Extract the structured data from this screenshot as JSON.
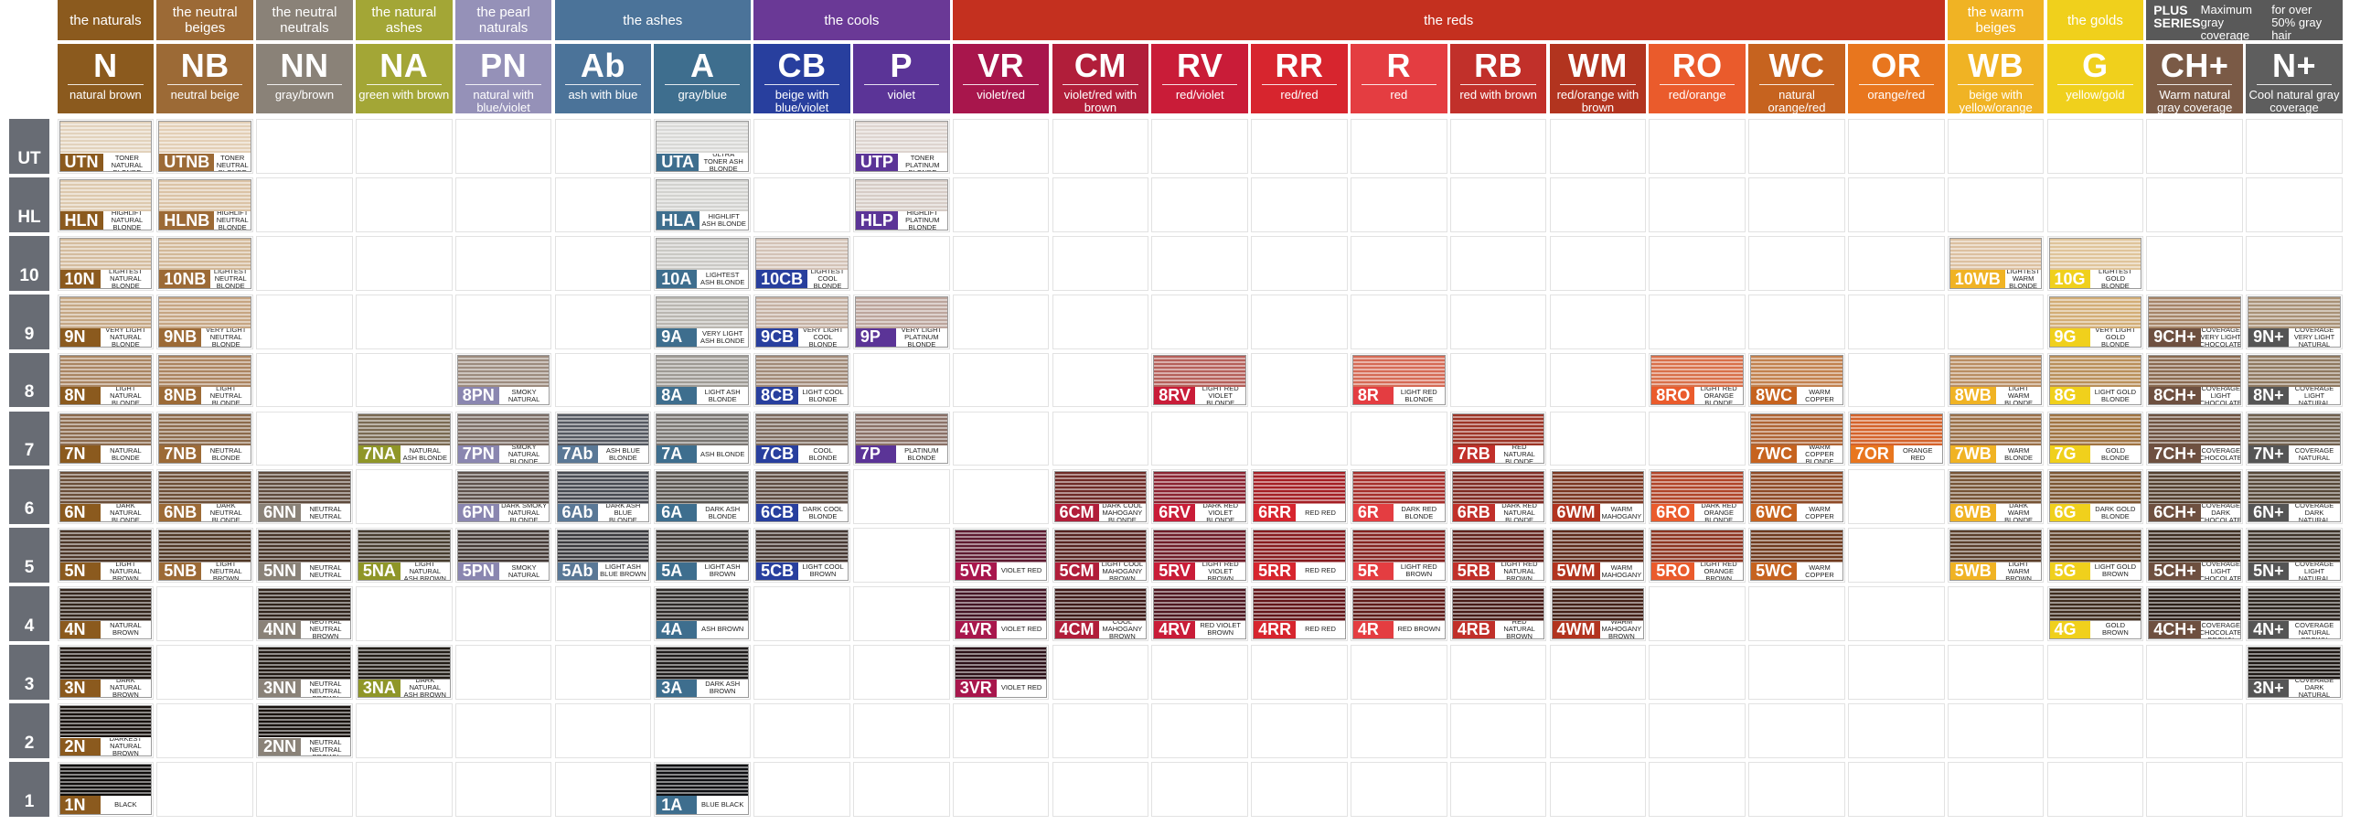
{
  "levels": [
    "UT",
    "HL",
    "10",
    "9",
    "8",
    "7",
    "6",
    "5",
    "4",
    "3",
    "2",
    "1"
  ],
  "groups": [
    {
      "text": "the naturals",
      "color": "#8b5a1e",
      "span": 1
    },
    {
      "text": "the neutral beiges",
      "color": "#9c6a36",
      "span": 1
    },
    {
      "text": "the neutral neutrals",
      "color": "#8a8278",
      "span": 1
    },
    {
      "text": "the natural ashes",
      "color": "#a3a636",
      "span": 1
    },
    {
      "text": "the pearl naturals",
      "color": "#9591b8",
      "span": 1
    },
    {
      "text": "the ashes",
      "color": "#4b7399",
      "span": 2
    },
    {
      "text": "the cools",
      "color": "#6a3996",
      "span": 2
    },
    {
      "text": "the reds",
      "color": "#c4301f",
      "span": 10
    },
    {
      "text": "the warm beiges",
      "color": "#f0b324",
      "span": 1
    },
    {
      "text": "the golds",
      "color": "#f0d01c",
      "span": 1
    },
    {
      "text": "",
      "color": "#595959",
      "span": 2,
      "plus": true
    }
  ],
  "plus_series": {
    "title": "PLUS SERIES",
    "line1": "Maximum gray coverage",
    "line2": "for over 50% gray hair"
  },
  "columns": [
    {
      "code": "N",
      "sub": "natural brown",
      "color": "#8b5a1e",
      "swatch": "#8b5a1e"
    },
    {
      "code": "NB",
      "sub": "neutral beige",
      "color": "#9c6a36",
      "swatch": "#9c6a36"
    },
    {
      "code": "NN",
      "sub": "gray/brown",
      "color": "#8a8278",
      "swatch": "#8a8278"
    },
    {
      "code": "NA",
      "sub": "green with brown",
      "color": "#a3a636",
      "swatch": "#8f9628"
    },
    {
      "code": "PN",
      "sub": "natural with blue/violet",
      "color": "#9591b8",
      "swatch": "#8a86b0"
    },
    {
      "code": "Ab",
      "sub": "ash with blue",
      "color": "#4b7399",
      "swatch": "#5a7896"
    },
    {
      "code": "A",
      "sub": "gray/blue",
      "color": "#3e6e8e",
      "swatch": "#3e6e8e"
    },
    {
      "code": "CB",
      "sub": "beige with blue/violet",
      "color": "#283f9e",
      "swatch": "#283f9e"
    },
    {
      "code": "P",
      "sub": "violet",
      "color": "#5b3497",
      "swatch": "#5b3497"
    },
    {
      "code": "VR",
      "sub": "violet/red",
      "color": "#a8164c",
      "swatch": "#a8164c"
    },
    {
      "code": "CM",
      "sub": "violet/red with brown",
      "color": "#b11e3a",
      "swatch": "#b11e3a"
    },
    {
      "code": "RV",
      "sub": "red/violet",
      "color": "#c91c38",
      "swatch": "#c91c38"
    },
    {
      "code": "RR",
      "sub": "red/red",
      "color": "#d7252e",
      "swatch": "#d7252e"
    },
    {
      "code": "R",
      "sub": "red",
      "color": "#e43d41",
      "swatch": "#e43d41"
    },
    {
      "code": "RB",
      "sub": "red with brown",
      "color": "#c1302a",
      "swatch": "#c1302a"
    },
    {
      "code": "WM",
      "sub": "red/orange with brown",
      "color": "#b2341f",
      "swatch": "#b2341f"
    },
    {
      "code": "RO",
      "sub": "red/orange",
      "color": "#ea5b2c",
      "swatch": "#ea5b2c"
    },
    {
      "code": "WC",
      "sub": "natural orange/red",
      "color": "#c6631f",
      "swatch": "#c6631f"
    },
    {
      "code": "OR",
      "sub": "orange/red",
      "color": "#e8761e",
      "swatch": "#e8761e"
    },
    {
      "code": "WB",
      "sub": "beige with yellow/orange",
      "color": "#f0b324",
      "swatch": "#f0b324"
    },
    {
      "code": "G",
      "sub": "yellow/gold",
      "color": "#f0d01c",
      "swatch": "#f0d01c"
    },
    {
      "code": "CH+",
      "sub": "Warm natural gray coverage",
      "color": "#7a5a46",
      "swatch": "#6e5040"
    },
    {
      "code": "N+",
      "sub": "Cool natural gray coverage",
      "color": "#5e5e5e",
      "swatch": "#555555"
    }
  ],
  "swatches": [
    {
      "col": 0,
      "row": 0,
      "label": "UTN",
      "desc": "ULTRA TONER NATURAL BLONDE",
      "hair": "#e2d2bc"
    },
    {
      "col": 1,
      "row": 0,
      "label": "UTNB",
      "desc": "ULTRA TONER NEUTRAL BLONDE",
      "hair": "#e3cfb6"
    },
    {
      "col": 6,
      "row": 0,
      "label": "UTA",
      "desc": "ULTRA TONER ASH BLONDE",
      "hair": "#d8d8d6"
    },
    {
      "col": 8,
      "row": 0,
      "label": "UTP",
      "desc": "ULTRA TONER PLATINUM BLONDE",
      "hair": "#ddd4cf"
    },
    {
      "col": 0,
      "row": 1,
      "label": "HLN",
      "desc": "HIGHLIFT NATURAL BLONDE",
      "hair": "#ddc9ae"
    },
    {
      "col": 1,
      "row": 1,
      "label": "HLNB",
      "desc": "HIGHLIFT NEUTRAL BLONDE",
      "hair": "#dbc3a6"
    },
    {
      "col": 6,
      "row": 1,
      "label": "HLA",
      "desc": "HIGHLIFT ASH BLONDE",
      "hair": "#d2d2cf"
    },
    {
      "col": 8,
      "row": 1,
      "label": "HLP",
      "desc": "HIGHLIFT PLATINUM BLONDE",
      "hair": "#d6ccc6"
    },
    {
      "col": 0,
      "row": 2,
      "label": "10N",
      "desc": "LIGHTEST NATURAL BLONDE",
      "hair": "#d4bc9e"
    },
    {
      "col": 1,
      "row": 2,
      "label": "10NB",
      "desc": "LIGHTEST NEUTRAL BLONDE",
      "hair": "#d2b898"
    },
    {
      "col": 6,
      "row": 2,
      "label": "10A",
      "desc": "LIGHTEST ASH BLONDE",
      "hair": "#c9c8c4"
    },
    {
      "col": 7,
      "row": 2,
      "label": "10CB",
      "desc": "LIGHTEST COOL BLONDE",
      "hair": "#d3c2b6"
    },
    {
      "col": 19,
      "row": 2,
      "label": "10WB",
      "desc": "LIGHTEST WARM BLONDE",
      "hair": "#dcc0a0"
    },
    {
      "col": 20,
      "row": 2,
      "label": "10G",
      "desc": "LIGHTEST GOLD BLONDE",
      "hair": "#dfc49a"
    },
    {
      "col": 0,
      "row": 3,
      "label": "9N",
      "desc": "VERY LIGHT NATURAL BLONDE",
      "hair": "#c5a784"
    },
    {
      "col": 1,
      "row": 3,
      "label": "9NB",
      "desc": "VERY LIGHT NEUTRAL BLONDE",
      "hair": "#c6a582"
    },
    {
      "col": 6,
      "row": 3,
      "label": "9A",
      "desc": "VERY LIGHT ASH BLONDE",
      "hair": "#b9b6b0"
    },
    {
      "col": 7,
      "row": 3,
      "label": "9CB",
      "desc": "VERY LIGHT COOL BLONDE",
      "hair": "#c4b0a2"
    },
    {
      "col": 8,
      "row": 3,
      "label": "9P",
      "desc": "VERY LIGHT PLATINUM BLONDE",
      "hair": "#bca59c"
    },
    {
      "col": 20,
      "row": 3,
      "label": "9G",
      "desc": "VERY LIGHT GOLD BLONDE",
      "hair": "#d2ad76"
    },
    {
      "col": 21,
      "row": 3,
      "label": "9CH+",
      "desc": "GRAY COVERAGE VERY LIGHT CHOCOLATE BLONDE",
      "hair": "#a58467"
    },
    {
      "col": 22,
      "row": 3,
      "label": "9N+",
      "desc": "GRAY COVERAGE VERY LIGHT NATURAL BLONDE",
      "hair": "#a89176"
    },
    {
      "col": 0,
      "row": 4,
      "label": "8N",
      "desc": "LIGHT NATURAL BLONDE",
      "hair": "#a98562"
    },
    {
      "col": 1,
      "row": 4,
      "label": "8NB",
      "desc": "LIGHT NEUTRAL BLONDE",
      "hair": "#ab8460"
    },
    {
      "col": 4,
      "row": 4,
      "label": "8PN",
      "desc": "LIGHT SMOKY NATURAL BLONDE",
      "hair": "#9c8b7e"
    },
    {
      "col": 6,
      "row": 4,
      "label": "8A",
      "desc": "LIGHT ASH BLONDE",
      "hair": "#9e9a94"
    },
    {
      "col": 7,
      "row": 4,
      "label": "8CB",
      "desc": "LIGHT COOL BLONDE",
      "hair": "#a18a78"
    },
    {
      "col": 11,
      "row": 4,
      "label": "8RV",
      "desc": "LIGHT RED VIOLET BLONDE",
      "hair": "#b5605a"
    },
    {
      "col": 13,
      "row": 4,
      "label": "8R",
      "desc": "LIGHT RED BLONDE",
      "hair": "#d56a55"
    },
    {
      "col": 16,
      "row": 4,
      "label": "8RO",
      "desc": "LIGHT RED ORANGE BLONDE",
      "hair": "#d8704a"
    },
    {
      "col": 17,
      "row": 4,
      "label": "8WC",
      "desc": "LIGHT WARM COPPER BLONDE",
      "hair": "#c2814e"
    },
    {
      "col": 19,
      "row": 4,
      "label": "8WB",
      "desc": "LIGHT WARM BLONDE",
      "hair": "#b98d62"
    },
    {
      "col": 20,
      "row": 4,
      "label": "8G",
      "desc": "LIGHT GOLD BLONDE",
      "hair": "#b98f5a"
    },
    {
      "col": 21,
      "row": 4,
      "label": "8CH+",
      "desc": "GRAY COVERAGE LIGHT CHOCOLATE BLONDE",
      "hair": "#8a6a50"
    },
    {
      "col": 22,
      "row": 4,
      "label": "8N+",
      "desc": "GRAY COVERAGE LIGHT NATURAL BLONDE",
      "hair": "#8f7960"
    },
    {
      "col": 0,
      "row": 5,
      "label": "7N",
      "desc": "NATURAL BLONDE",
      "hair": "#8b6a4d"
    },
    {
      "col": 1,
      "row": 5,
      "label": "7NB",
      "desc": "NEUTRAL BLONDE",
      "hair": "#8c6a4b"
    },
    {
      "col": 3,
      "row": 5,
      "label": "7NA",
      "desc": "NATURAL ASH BLONDE",
      "hair": "#7a6a52"
    },
    {
      "col": 4,
      "row": 5,
      "label": "7PN",
      "desc": "SMOKY NATURAL BLONDE",
      "hair": "#7c6e66"
    },
    {
      "col": 5,
      "row": 5,
      "label": "7Ab",
      "desc": "ASH BLUE BLONDE",
      "hair": "#545860"
    },
    {
      "col": 6,
      "row": 5,
      "label": "7A",
      "desc": "ASH BLONDE",
      "hair": "#7a7672"
    },
    {
      "col": 7,
      "row": 5,
      "label": "7CB",
      "desc": "COOL BLONDE",
      "hair": "#7c6a5e"
    },
    {
      "col": 8,
      "row": 5,
      "label": "7P",
      "desc": "PLATINUM BLONDE",
      "hair": "#8a7066"
    },
    {
      "col": 14,
      "row": 5,
      "label": "7RB",
      "desc": "RED NATURAL BLONDE",
      "hair": "#9c3426"
    },
    {
      "col": 17,
      "row": 5,
      "label": "7WC",
      "desc": "WARM COPPER BLONDE",
      "hair": "#ae6434"
    },
    {
      "col": 18,
      "row": 5,
      "label": "7OR",
      "desc": "ORANGE RED",
      "hair": "#d4622a"
    },
    {
      "col": 19,
      "row": 5,
      "label": "7WB",
      "desc": "WARM BLONDE",
      "hair": "#9a7048"
    },
    {
      "col": 20,
      "row": 5,
      "label": "7G",
      "desc": "GOLD BLONDE",
      "hair": "#a07442"
    },
    {
      "col": 21,
      "row": 5,
      "label": "7CH+",
      "desc": "GRAY COVERAGE CHOCOLATE BLONDE",
      "hair": "#6e5240"
    },
    {
      "col": 22,
      "row": 5,
      "label": "7N+",
      "desc": "GRAY COVERAGE NATURAL BLONDE",
      "hair": "#70604e"
    },
    {
      "col": 0,
      "row": 6,
      "label": "6N",
      "desc": "DARK NATURAL BLONDE",
      "hair": "#6a4e38"
    },
    {
      "col": 1,
      "row": 6,
      "label": "6NB",
      "desc": "DARK NEUTRAL BLONDE",
      "hair": "#6c4e36"
    },
    {
      "col": 2,
      "row": 6,
      "label": "6NN",
      "desc": "DARK NEUTRAL NEUTRAL BLONDE",
      "hair": "#5e4a3c"
    },
    {
      "col": 4,
      "row": 6,
      "label": "6PN",
      "desc": "DARK SMOKY NATURAL BLONDE",
      "hair": "#5e524c"
    },
    {
      "col": 5,
      "row": 6,
      "label": "6Ab",
      "desc": "DARK ASH BLUE BLONDE",
      "hair": "#474a52"
    },
    {
      "col": 6,
      "row": 6,
      "label": "6A",
      "desc": "DARK ASH BLONDE",
      "hair": "#5a5550"
    },
    {
      "col": 7,
      "row": 6,
      "label": "6CB",
      "desc": "DARK COOL BLONDE",
      "hair": "#5e4c42"
    },
    {
      "col": 10,
      "row": 6,
      "label": "6CM",
      "desc": "DARK COOL MAHOGANY BLONDE",
      "hair": "#6e2a26"
    },
    {
      "col": 11,
      "row": 6,
      "label": "6RV",
      "desc": "DARK RED VIOLET BLONDE",
      "hair": "#8a2230"
    },
    {
      "col": 12,
      "row": 6,
      "label": "6RR",
      "desc": "RED RED",
      "hair": "#a41e24"
    },
    {
      "col": 13,
      "row": 6,
      "label": "6R",
      "desc": "DARK RED BLONDE",
      "hair": "#a52e2a"
    },
    {
      "col": 14,
      "row": 6,
      "label": "6RB",
      "desc": "DARK RED NATURAL BLONDE",
      "hair": "#7e2a22"
    },
    {
      "col": 15,
      "row": 6,
      "label": "6WM",
      "desc": "DARK WARM MAHOGANY BLONDE",
      "hair": "#7a3620"
    },
    {
      "col": 16,
      "row": 6,
      "label": "6RO",
      "desc": "DARK RED ORANGE BLONDE",
      "hair": "#b04428"
    },
    {
      "col": 17,
      "row": 6,
      "label": "6WC",
      "desc": "DARK WARM COPPER BLONDE",
      "hair": "#8e4a26"
    },
    {
      "col": 19,
      "row": 6,
      "label": "6WB",
      "desc": "DARK WARM BLONDE",
      "hair": "#765436"
    },
    {
      "col": 20,
      "row": 6,
      "label": "6G",
      "desc": "DARK GOLD BLONDE",
      "hair": "#7c5632"
    },
    {
      "col": 21,
      "row": 6,
      "label": "6CH+",
      "desc": "GRAY COVERAGE DARK CHOCOLATE BLONDE",
      "hair": "#54402f"
    },
    {
      "col": 22,
      "row": 6,
      "label": "6N+",
      "desc": "GRAY COVERAGE DARK NATURAL BLONDE",
      "hair": "#564838"
    },
    {
      "col": 0,
      "row": 7,
      "label": "5N",
      "desc": "LIGHT NATURAL BROWN",
      "hair": "#4c3628"
    },
    {
      "col": 1,
      "row": 7,
      "label": "5NB",
      "desc": "LIGHT NEUTRAL BROWN",
      "hair": "#503826"
    },
    {
      "col": 2,
      "row": 7,
      "label": "5NN",
      "desc": "LIGHT NEUTRAL NEUTRAL BROWN",
      "hair": "#463428"
    },
    {
      "col": 3,
      "row": 7,
      "label": "5NA",
      "desc": "LIGHT NATURAL ASH BROWN",
      "hair": "#463c2e"
    },
    {
      "col": 4,
      "row": 7,
      "label": "5PN",
      "desc": "LIGHT SMOKY NATURAL BROWN",
      "hair": "#443a36"
    },
    {
      "col": 5,
      "row": 7,
      "label": "5Ab",
      "desc": "LIGHT ASH BLUE BROWN",
      "hair": "#3a3a3e"
    },
    {
      "col": 6,
      "row": 7,
      "label": "5A",
      "desc": "LIGHT ASH BROWN",
      "hair": "#423c38"
    },
    {
      "col": 7,
      "row": 7,
      "label": "5CB",
      "desc": "LIGHT COOL BROWN",
      "hair": "#463832"
    },
    {
      "col": 9,
      "row": 7,
      "label": "5VR",
      "desc": "VIOLET RED",
      "hair": "#5e1a30"
    },
    {
      "col": 10,
      "row": 7,
      "label": "5CM",
      "desc": "LIGHT COOL MAHOGANY BROWN",
      "hair": "#56221f"
    },
    {
      "col": 11,
      "row": 7,
      "label": "5RV",
      "desc": "LIGHT RED VIOLET BROWN",
      "hair": "#6e1c28"
    },
    {
      "col": 12,
      "row": 7,
      "label": "5RR",
      "desc": "RED RED",
      "hair": "#861a1e"
    },
    {
      "col": 13,
      "row": 7,
      "label": "5R",
      "desc": "LIGHT RED BROWN",
      "hair": "#84221f"
    },
    {
      "col": 14,
      "row": 7,
      "label": "5RB",
      "desc": "LIGHT RED NATURAL BROWN",
      "hair": "#62221c"
    },
    {
      "col": 15,
      "row": 7,
      "label": "5WM",
      "desc": "LIGHT WARM MAHOGANY BROWN",
      "hair": "#5e2a1a"
    },
    {
      "col": 16,
      "row": 7,
      "label": "5RO",
      "desc": "LIGHT RED ORANGE BROWN",
      "hair": "#8c3420"
    },
    {
      "col": 17,
      "row": 7,
      "label": "5WC",
      "desc": "LIGHT WARM COPPER BROWN",
      "hair": "#6e3a1e"
    },
    {
      "col": 19,
      "row": 7,
      "label": "5WB",
      "desc": "LIGHT WARM BROWN",
      "hair": "#5a3e2a"
    },
    {
      "col": 20,
      "row": 7,
      "label": "5G",
      "desc": "LIGHT GOLD BROWN",
      "hair": "#5e4028"
    },
    {
      "col": 21,
      "row": 7,
      "label": "5CH+",
      "desc": "GRAY COVERAGE LIGHT CHOCOLATE BROWN",
      "hair": "#3e2e22"
    },
    {
      "col": 22,
      "row": 7,
      "label": "5N+",
      "desc": "GRAY COVERAGE LIGHT NATURAL BROWN",
      "hair": "#3e342a"
    },
    {
      "col": 0,
      "row": 8,
      "label": "4N",
      "desc": "NATURAL BROWN",
      "hair": "#33251c"
    },
    {
      "col": 2,
      "row": 8,
      "label": "4NN",
      "desc": "NEUTRAL NEUTRAL BROWN",
      "hair": "#30241c"
    },
    {
      "col": 6,
      "row": 8,
      "label": "4A",
      "desc": "ASH BROWN",
      "hair": "#2e2a28"
    },
    {
      "col": 9,
      "row": 8,
      "label": "4VR",
      "desc": "VIOLET RED",
      "hair": "#431424"
    },
    {
      "col": 10,
      "row": 8,
      "label": "4CM",
      "desc": "COOL MAHOGANY BROWN",
      "hair": "#3e1a18"
    },
    {
      "col": 11,
      "row": 8,
      "label": "4RV",
      "desc": "RED VIOLET BROWN",
      "hair": "#4e1620"
    },
    {
      "col": 12,
      "row": 8,
      "label": "4RR",
      "desc": "RED RED",
      "hair": "#621418"
    },
    {
      "col": 13,
      "row": 8,
      "label": "4R",
      "desc": "RED BROWN",
      "hair": "#5e1a18"
    },
    {
      "col": 14,
      "row": 8,
      "label": "4RB",
      "desc": "RED NATURAL BROWN",
      "hair": "#461a16"
    },
    {
      "col": 15,
      "row": 8,
      "label": "4WM",
      "desc": "WARM MAHOGANY BROWN",
      "hair": "#422016"
    },
    {
      "col": 20,
      "row": 8,
      "label": "4G",
      "desc": "GOLD BROWN",
      "hair": "#3e2c1e"
    },
    {
      "col": 21,
      "row": 8,
      "label": "4CH+",
      "desc": "GRAY COVERAGE CHOCOLATE BROWN",
      "hair": "#2c2019"
    },
    {
      "col": 22,
      "row": 8,
      "label": "4N+",
      "desc": "GRAY COVERAGE NATURAL BROWN",
      "hair": "#2c241e"
    },
    {
      "col": 0,
      "row": 9,
      "label": "3N",
      "desc": "DARK NATURAL BROWN",
      "hair": "#211812"
    },
    {
      "col": 2,
      "row": 9,
      "label": "3NN",
      "desc": "DARK NEUTRAL NEUTRAL BROWN",
      "hair": "#211913"
    },
    {
      "col": 3,
      "row": 9,
      "label": "3NA",
      "desc": "DARK NATURAL ASH BROWN",
      "hair": "#221d16"
    },
    {
      "col": 6,
      "row": 9,
      "label": "3A",
      "desc": "DARK ASH BROWN",
      "hair": "#1f1c1b"
    },
    {
      "col": 9,
      "row": 9,
      "label": "3VR",
      "desc": "VIOLET RED",
      "hair": "#2c1018"
    },
    {
      "col": 22,
      "row": 9,
      "label": "3N+",
      "desc": "GRAY COVERAGE DARK NATURAL BROWN",
      "hair": "#1e1814"
    },
    {
      "col": 0,
      "row": 10,
      "label": "2N",
      "desc": "DARKEST NATURAL BROWN",
      "hair": "#17110d"
    },
    {
      "col": 2,
      "row": 10,
      "label": "2NN",
      "desc": "DARKEST NEUTRAL NEUTRAL BROWN",
      "hair": "#18120e"
    },
    {
      "col": 0,
      "row": 11,
      "label": "1N",
      "desc": "BLACK",
      "hair": "#0e0c0b"
    },
    {
      "col": 6,
      "row": 11,
      "label": "1A",
      "desc": "BLUE BLACK",
      "hair": "#0e0f12"
    }
  ]
}
